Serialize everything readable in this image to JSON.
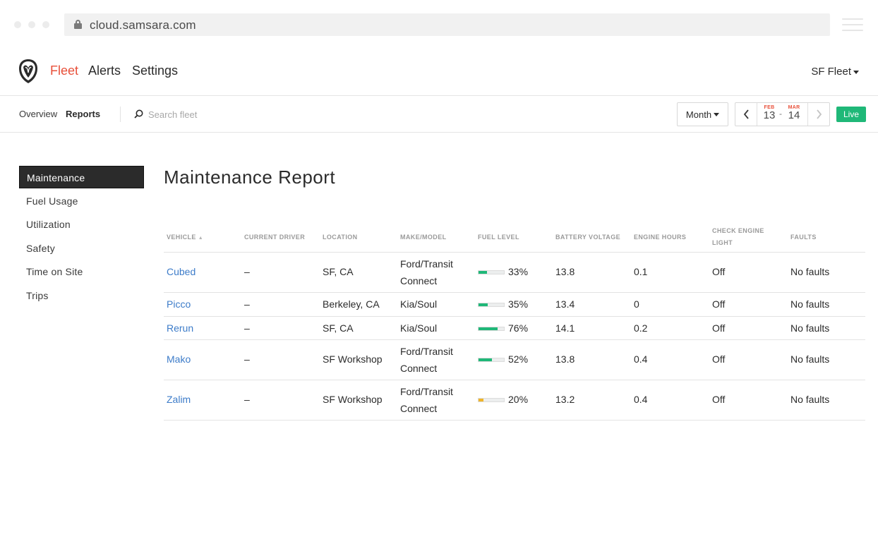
{
  "browser": {
    "url": "cloud.samsara.com"
  },
  "topnav": {
    "items": [
      {
        "label": "Fleet",
        "active": true
      },
      {
        "label": "Alerts",
        "active": false
      },
      {
        "label": "Settings",
        "active": false
      }
    ],
    "fleet_selector": "SF Fleet"
  },
  "subnav": {
    "items": [
      {
        "label": "Overview",
        "active": false
      },
      {
        "label": "Reports",
        "active": true
      }
    ],
    "search_placeholder": "Search fleet",
    "period": "Month",
    "date_start": {
      "month": "FEB",
      "day": "13"
    },
    "date_separator": "-",
    "date_end": {
      "month": "MAR",
      "day": "14"
    },
    "live_label": "Live"
  },
  "sidebar": {
    "items": [
      {
        "label": "Maintenance",
        "active": true
      },
      {
        "label": "Fuel Usage",
        "active": false
      },
      {
        "label": "Utilization",
        "active": false
      },
      {
        "label": "Safety",
        "active": false
      },
      {
        "label": "Time on Site",
        "active": false
      },
      {
        "label": "Trips",
        "active": false
      }
    ]
  },
  "report": {
    "title": "Maintenance Report",
    "columns": [
      "VEHICLE",
      "CURRENT DRIVER",
      "LOCATION",
      "MAKE/MODEL",
      "FUEL LEVEL",
      "BATTERY VOLTAGE",
      "ENGINE HOURS",
      "CHECK ENGINE LIGHT",
      "FAULTS"
    ],
    "column_check_engine_line1": "CHECK ENGINE",
    "column_check_engine_line2": "LIGHT",
    "sort_indicator": "▲",
    "rows": [
      {
        "vehicle": "Cubed",
        "driver": "–",
        "location": "SF, CA",
        "make_line1": "Ford/Transit",
        "make_line2": "Connect",
        "fuel": 0.33,
        "fuel_label": "33%",
        "fuel_color": "#1fb878",
        "battery": "13.8",
        "hours": "0.1",
        "check_engine": "Off",
        "faults": "No faults"
      },
      {
        "vehicle": "Picco",
        "driver": "–",
        "location": "Berkeley, CA",
        "make_line1": "Kia/Soul",
        "make_line2": "",
        "fuel": 0.35,
        "fuel_label": "35%",
        "fuel_color": "#1fb878",
        "battery": "13.4",
        "hours": "0",
        "check_engine": "Off",
        "faults": "No faults"
      },
      {
        "vehicle": "Rerun",
        "driver": "–",
        "location": "SF, CA",
        "make_line1": "Kia/Soul",
        "make_line2": "",
        "fuel": 0.76,
        "fuel_label": "76%",
        "fuel_color": "#1fb878",
        "battery": "14.1",
        "hours": "0.2",
        "check_engine": "Off",
        "faults": "No faults"
      },
      {
        "vehicle": "Mako",
        "driver": "–",
        "location": "SF Workshop",
        "make_line1": "Ford/Transit",
        "make_line2": "Connect",
        "fuel": 0.52,
        "fuel_label": "52%",
        "fuel_color": "#1fb878",
        "battery": "13.8",
        "hours": "0.4",
        "check_engine": "Off",
        "faults": "No faults"
      },
      {
        "vehicle": "Zalim",
        "driver": "–",
        "location": "SF Workshop",
        "make_line1": "Ford/Transit",
        "make_line2": "Connect",
        "fuel": 0.2,
        "fuel_label": "20%",
        "fuel_color": "#f0b429",
        "battery": "13.2",
        "hours": "0.4",
        "check_engine": "Off",
        "faults": "No faults"
      }
    ]
  },
  "colors": {
    "accent": "#e8503a",
    "link": "#3d7cc9",
    "live": "#1fb878"
  }
}
